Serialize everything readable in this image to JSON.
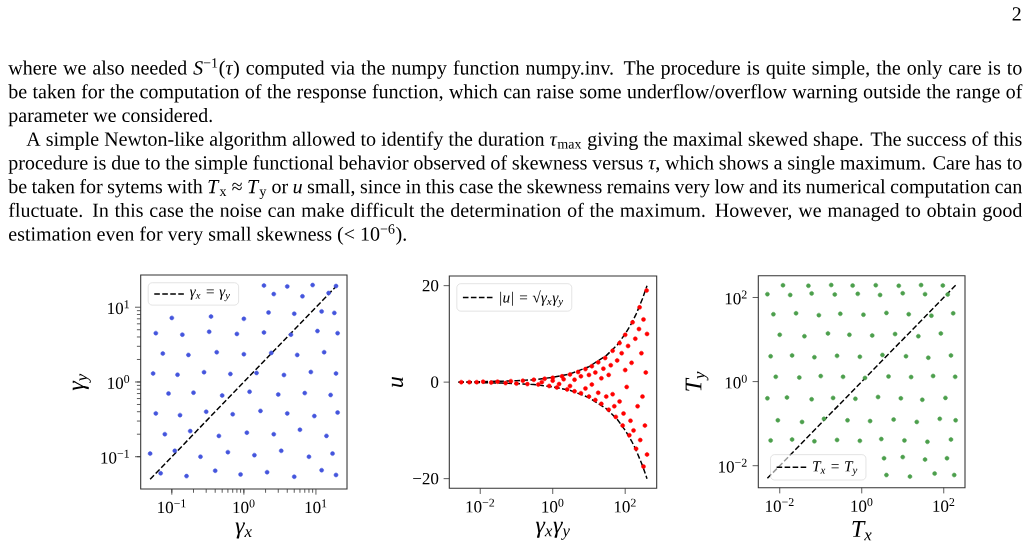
{
  "chart_data": [
    {
      "type": "other",
      "annotations": [
        "2",
        "where we also needed *S*$^{−1}$(*τ*) computed via the numpy function numpy.inv. The procedure is quite simple, the only care is to be taken for the computation of the response function, which can raise some underflow/overflow warning outside the range of parameter we considered.",
        "A simple Newton-like algorithm allowed to identify the duration *τ*$_{max}$ giving the maximal skewed shape. The success of this procedure is due to the simple functional behavior observed of skewness versus *τ*, which shows a single maximum. Care has to be taken for sytems with *T*$_{x}$ ≈ *T*$_{y}$ or *u* small, since in this case the skewness remains very low and its numerical computation can fluctuate. In this case the noise can make difficult the determination of the maximum. However, we managed to obtain good estimation even for very small skewness (< 10$^{−6}$)."
      ]
    },
    {
      "type": "scatter",
      "xlabel": "γ$_{x}$",
      "ylabel": "γ$_{y}$",
      "log": "xy",
      "xlim": [
        0.037,
        27
      ],
      "ylim": [
        0.037,
        27
      ],
      "xticks": [
        {
          "value": 0.1,
          "label": "10$^{−1}$"
        },
        {
          "value": 1,
          "label": "10$^{0}$"
        },
        {
          "value": 10,
          "label": "10$^{1}$"
        }
      ],
      "yticks": [
        {
          "value": 0.1,
          "label": "10$^{−1}$"
        },
        {
          "value": 1,
          "label": "10$^{0}$"
        },
        {
          "value": 10,
          "label": "10$^{1}$"
        }
      ],
      "legend": "top left",
      "marker": "circle",
      "series": [
        {
          "type": "scatter",
          "color": "#4455dd",
          "x": [
            0.07,
            0.16,
            0.4,
            0.9,
            2.1,
            5,
            12,
            19,
            0.05,
            0.11,
            0.25,
            0.6,
            1.4,
            3.3,
            8,
            17,
            0.08,
            0.18,
            0.45,
            1.1,
            2.6,
            6,
            14,
            0.06,
            0.13,
            0.3,
            0.7,
            1.7,
            4,
            9.5,
            20,
            0.09,
            0.2,
            0.5,
            1.2,
            3,
            7,
            16,
            0.055,
            0.12,
            0.28,
            0.65,
            1.5,
            3.6,
            8.5,
            19,
            0.075,
            0.17,
            0.42,
            1,
            2.4,
            5.5,
            13,
            0.06,
            0.14,
            0.33,
            0.8,
            1.9,
            4.5,
            10.5,
            20,
            0.1,
            0.35,
            1,
            2.2,
            5,
            12,
            18,
            2.6,
            6.5,
            15,
            1.9,
            4,
            9,
            19
          ],
          "values": [
            0.06,
            0.055,
            0.065,
            0.058,
            0.062,
            0.054,
            0.066,
            0.057,
            0.11,
            0.12,
            0.1,
            0.115,
            0.105,
            0.12,
            0.1,
            0.11,
            0.2,
            0.22,
            0.19,
            0.21,
            0.2,
            0.23,
            0.19,
            0.38,
            0.36,
            0.4,
            0.37,
            0.41,
            0.38,
            0.35,
            0.39,
            0.7,
            0.72,
            0.66,
            0.74,
            0.68,
            0.71,
            0.67,
            1.3,
            1.25,
            1.35,
            1.28,
            1.32,
            1.24,
            1.36,
            1.3,
            2.4,
            2.3,
            2.5,
            2.35,
            2.45,
            2.3,
            2.5,
            4.5,
            4.3,
            4.7,
            4.4,
            4.6,
            4.3,
            4.8,
            4.5,
            7.2,
            7.5,
            7,
            8.5,
            8.2,
            8.8,
            8.4,
            15,
            14,
            15.5,
            19.5,
            19,
            19.8,
            19.2
          ]
        },
        {
          "type": "line",
          "name": "γ$_{x}$ = γ$_{y}$",
          "color": "#000000",
          "line_style": "dashed",
          "marker": "none",
          "x": [
            0.05,
            20
          ],
          "values": [
            0.05,
            20
          ]
        }
      ]
    },
    {
      "type": "scatter",
      "xlabel": "γ$_{x}$γ$_{y}$",
      "ylabel": "u",
      "log": "x",
      "xlim": [
        0.0014,
        740
      ],
      "ylim": [
        -22,
        22
      ],
      "xticks": [
        {
          "value": 0.01,
          "label": "10$^{−2}$"
        },
        {
          "value": 1,
          "label": "10$^{0}$"
        },
        {
          "value": 100,
          "label": "10$^{2}$"
        }
      ],
      "yticks": [
        {
          "value": -20,
          "label": "−20"
        },
        0,
        20
      ],
      "legend": "top left",
      "marker": "circle",
      "series": [
        {
          "type": "scatter",
          "color": "#ff0000",
          "x": [
            0.003,
            0.005,
            0.008,
            0.012,
            0.02,
            0.03,
            0.05,
            0.07,
            0.1,
            0.15,
            0.2,
            0.3,
            0.4,
            0.6,
            0.8,
            1,
            1.3,
            1.8,
            2.5,
            3,
            4,
            5,
            6,
            8,
            10,
            12,
            15,
            18,
            22,
            28,
            35,
            45,
            55,
            70,
            85,
            100,
            130,
            160,
            200,
            250,
            320,
            390,
            0.5,
            1,
            1.5,
            2,
            3,
            4,
            6,
            8,
            10,
            12,
            15,
            18,
            22,
            25,
            30,
            35,
            40,
            45,
            50,
            60,
            70,
            80,
            90,
            100,
            110,
            120,
            140,
            150,
            170,
            190,
            220,
            240,
            260,
            280,
            300,
            320,
            350,
            370,
            400,
            400
          ],
          "values": [
            0,
            0,
            0,
            0.1,
            -0.1,
            0.1,
            -0.2,
            0.2,
            -0.3,
            0.3,
            -0.4,
            0.5,
            -0.5,
            0.7,
            -0.8,
            0.9,
            -1.1,
            1.2,
            -1.5,
            1.6,
            -1.9,
            2.1,
            -2.3,
            2.7,
            -3,
            3.3,
            -3.7,
            4.1,
            -4.5,
            5,
            -5.7,
            6.5,
            -7.2,
            8.1,
            -9,
            9.8,
            -11,
            12.4,
            -13.8,
            15.5,
            -17.5,
            19,
            0,
            0.3,
            -0.4,
            0.6,
            -0.8,
            0.5,
            1.2,
            -1.3,
            1.5,
            -0.5,
            2,
            -2.2,
            0.8,
            2.8,
            -3,
            1.5,
            3.5,
            -2.5,
            -5,
            4.5,
            -4,
            6,
            -6.5,
            2.5,
            -1,
            7.5,
            -8,
            4,
            -10,
            9,
            -5,
            11,
            -12,
            6,
            -3,
            13,
            -9,
            2,
            -15,
            10
          ]
        },
        {
          "type": "line",
          "name": "|u| = √γ$_{x}$γ$_{y}$",
          "color": "#000000",
          "line_style": "dashed",
          "marker": "none",
          "x": [
            0.0025,
            0.01,
            0.04,
            0.1,
            0.3,
            1,
            3,
            10,
            30,
            60,
            100,
            150,
            200,
            300,
            400
          ],
          "values": [
            0,
            0.1,
            0.2,
            0.3,
            0.5,
            1,
            1.7,
            3.2,
            5.5,
            7.7,
            10,
            12.2,
            14.1,
            17.3,
            20
          ]
        },
        {
          "type": "line",
          "color": "#000000",
          "line_style": "dashed",
          "marker": "none",
          "x": [
            0.0025,
            0.01,
            0.04,
            0.1,
            0.3,
            1,
            3,
            10,
            30,
            60,
            100,
            150,
            200,
            300,
            400
          ],
          "values": [
            0,
            -0.1,
            -0.2,
            -0.3,
            -0.5,
            -1,
            -1.7,
            -3.2,
            -5.5,
            -7.7,
            -10,
            -12.2,
            -14.1,
            -17.3,
            -20
          ]
        }
      ]
    },
    {
      "type": "scatter",
      "xlabel": "T$_{x}$",
      "ylabel": "T$_{y}$",
      "log": "xy",
      "xlim": [
        0.003,
        330
      ],
      "ylim": [
        0.003,
        330
      ],
      "xticks": [
        {
          "value": 0.01,
          "label": "10$^{−2}$"
        },
        {
          "value": 1,
          "label": "10$^{0}$"
        },
        {
          "value": 100,
          "label": "10$^{2}$"
        }
      ],
      "yticks": [
        {
          "value": 0.01,
          "label": "10$^{−2}$"
        },
        {
          "value": 1,
          "label": "10$^{0}$"
        },
        {
          "value": 100,
          "label": "10$^{2}$"
        }
      ],
      "legend": "bottom left",
      "marker": "circle",
      "series": [
        {
          "type": "scatter",
          "color": "#4c9f4c",
          "x": [
            4,
            15,
            60,
            180,
            3.5,
            10,
            35,
            120,
            0.006,
            0.02,
            0.07,
            0.25,
            0.9,
            3,
            11,
            40,
            150,
            0.009,
            0.035,
            0.12,
            0.45,
            1.6,
            6,
            22,
            80,
            195,
            0.005,
            0.015,
            0.06,
            0.2,
            0.7,
            2.5,
            9,
            30,
            110,
            0.008,
            0.03,
            0.1,
            0.35,
            1.2,
            4.5,
            16,
            55,
            190,
            0.006,
            0.02,
            0.07,
            0.25,
            0.9,
            3.2,
            12,
            42,
            150,
            0.01,
            0.04,
            0.15,
            0.5,
            1.8,
            6.5,
            24,
            85,
            0.007,
            0.025,
            0.09,
            0.3,
            1.1,
            4,
            14,
            50,
            170,
            0.005,
            0.018,
            0.06,
            0.22,
            0.8,
            2.8,
            10,
            35,
            125,
            0.012,
            0.05,
            0.18,
            0.6,
            2.2,
            8,
            28,
            95
          ],
          "values": [
            0.006,
            0.0055,
            0.0065,
            0.006,
            0.015,
            0.016,
            0.014,
            0.015,
            0.04,
            0.042,
            0.038,
            0.041,
            0.039,
            0.043,
            0.04,
            0.037,
            0.042,
            0.12,
            0.11,
            0.13,
            0.12,
            0.115,
            0.125,
            0.11,
            0.13,
            0.12,
            0.4,
            0.42,
            0.38,
            0.41,
            0.39,
            0.43,
            0.4,
            0.37,
            0.41,
            1.3,
            1.25,
            1.35,
            1.3,
            1.22,
            1.33,
            1.28,
            1.36,
            1.3,
            4,
            4.2,
            3.8,
            4.1,
            3.9,
            4.3,
            4,
            3.7,
            4.2,
            13,
            12,
            14,
            13,
            12.5,
            13.5,
            12,
            14,
            40,
            42,
            38,
            41,
            39,
            43,
            40,
            37,
            42,
            120,
            115,
            125,
            118,
            122,
            115,
            126,
            120,
            118,
            195,
            190,
            198,
            192,
            196,
            190,
            197,
            193
          ]
        },
        {
          "type": "line",
          "name": "T$_{x}$ = T$_{y}$",
          "color": "#000000",
          "line_style": "dashed",
          "marker": "none",
          "x": [
            0.005,
            200
          ],
          "values": [
            0.005,
            200
          ]
        }
      ]
    }
  ]
}
